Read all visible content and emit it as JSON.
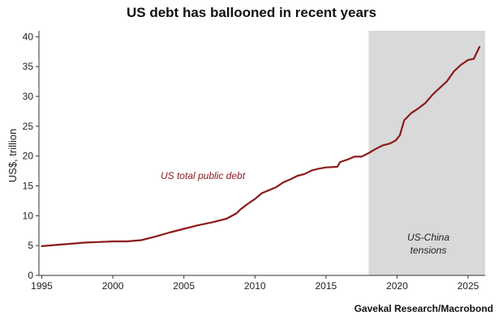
{
  "chart_data": {
    "type": "line",
    "title": "US debt has ballooned in recent years",
    "xlabel": "",
    "ylabel": "US$, trillion",
    "xlim": [
      1994.8,
      2026.2
    ],
    "ylim": [
      0,
      41
    ],
    "x_ticks": [
      1995,
      2000,
      2005,
      2010,
      2015,
      2020,
      2025
    ],
    "y_ticks": [
      0,
      5,
      10,
      15,
      20,
      25,
      30,
      35,
      40
    ],
    "grid": false,
    "series": [
      {
        "name": "US total public debt",
        "color": "#8b1a1a",
        "x": [
          1995,
          1996,
          1997,
          1998,
          1999,
          2000,
          2001,
          2002,
          2003,
          2004,
          2005,
          2006,
          2007,
          2008,
          2008.7,
          2009,
          2009.5,
          2010,
          2010.5,
          2011,
          2011.5,
          2012,
          2012.5,
          2013,
          2013.5,
          2014,
          2014.5,
          2015,
          2015.8,
          2016,
          2016.5,
          2017,
          2017.5,
          2018,
          2018.5,
          2019,
          2019.5,
          2019.9,
          2020.2,
          2020.5,
          2021,
          2021.5,
          2022,
          2022.5,
          2023,
          2023.5,
          2024,
          2024.5,
          2025,
          2025.4,
          2025.8
        ],
        "values": [
          4.9,
          5.1,
          5.3,
          5.5,
          5.6,
          5.7,
          5.7,
          5.9,
          6.5,
          7.2,
          7.8,
          8.4,
          8.9,
          9.5,
          10.4,
          11.1,
          12.0,
          12.8,
          13.8,
          14.3,
          14.8,
          15.6,
          16.1,
          16.7,
          17.0,
          17.6,
          17.9,
          18.1,
          18.2,
          19.0,
          19.4,
          19.9,
          19.9,
          20.5,
          21.2,
          21.8,
          22.1,
          22.6,
          23.5,
          26.0,
          27.2,
          28.0,
          28.9,
          30.3,
          31.4,
          32.5,
          34.2,
          35.3,
          36.1,
          36.3,
          38.3
        ]
      }
    ],
    "annotations": {
      "series_label": "US total public debt",
      "shaded_region": {
        "x_start": 2018,
        "x_end": 2026.2,
        "label_line1": "US-China",
        "label_line2": "tensions"
      }
    },
    "source": "Gavekal Research/Macrobond"
  },
  "colors": {
    "line": "#8b1a1a",
    "shade": "#d9d9d9",
    "axis": "#333333"
  }
}
